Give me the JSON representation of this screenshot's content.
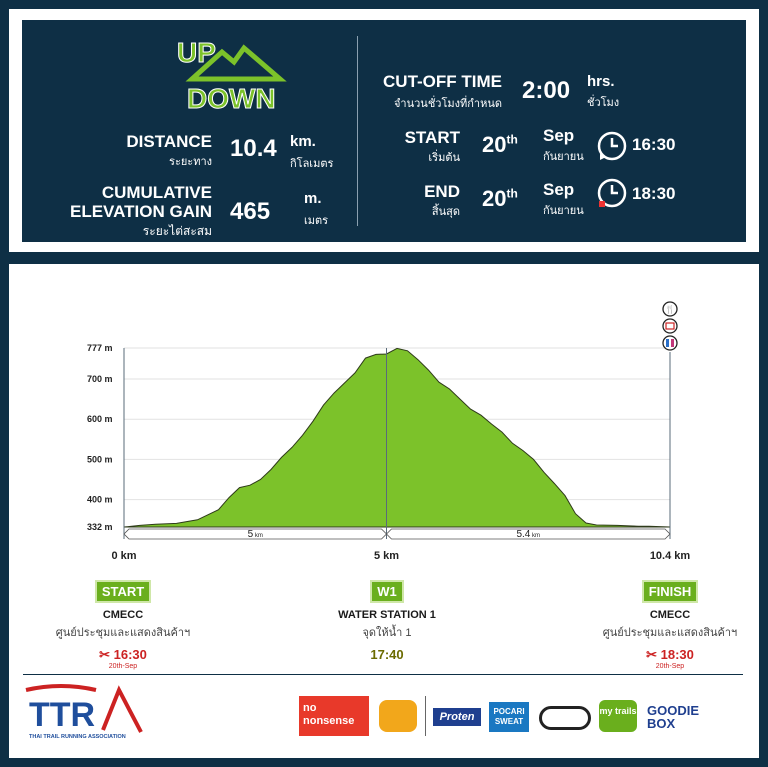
{
  "header": {
    "distance": {
      "label": "DISTANCE",
      "label_th": "ระยะทาง",
      "value": "10.4",
      "unit": "km.",
      "unit_th": "กิโลเมตร"
    },
    "elevation": {
      "label1": "CUMULATIVE",
      "label2": "ELEVATION GAIN",
      "label_th": "ระยะไต่สะสม",
      "value": "465",
      "unit": "m.",
      "unit_th": "เมตร"
    },
    "cutoff": {
      "label": "CUT-OFF TIME",
      "label_th": "จำนวนชั่วโมงที่กำหนด",
      "value": "2:00",
      "unit": "hrs.",
      "unit_th": "ชั่วโมง"
    },
    "start": {
      "label": "START",
      "label_th": "เริ่มต้น",
      "day": "20",
      "day_sup": "th",
      "month": "Sep",
      "month_th": "กันยายน",
      "time": "16:30"
    },
    "end": {
      "label": "END",
      "label_th": "สิ้นสุด",
      "day": "20",
      "day_sup": "th",
      "month": "Sep",
      "month_th": "กันยายน",
      "time": "18:30"
    }
  },
  "logo": {
    "line1": "UP",
    "line2": "DOWN"
  },
  "chart_data": {
    "type": "area",
    "xlabel": "",
    "ylabel": "",
    "y_ticks": [
      "777 m",
      "700 m",
      "600 m",
      "500 m",
      "400 m",
      "332 m"
    ],
    "y_tick_values": [
      777,
      700,
      600,
      500,
      400,
      332
    ],
    "ylim": [
      332,
      777
    ],
    "xlim": [
      0,
      10.4
    ],
    "x_ticks": [
      {
        "v": 0,
        "label": "0 km"
      },
      {
        "v": 5,
        "label": "5 km"
      },
      {
        "v": 10.4,
        "label": "10.4 km"
      }
    ],
    "segments": [
      {
        "from": 0,
        "to": 5,
        "label": "5",
        "unit": "km"
      },
      {
        "from": 5,
        "to": 10.4,
        "label": "5.4",
        "unit": "km"
      }
    ],
    "x": [
      0,
      0.3,
      0.6,
      1.0,
      1.4,
      1.8,
      2.0,
      2.2,
      2.4,
      2.6,
      2.8,
      3.0,
      3.2,
      3.4,
      3.6,
      3.8,
      4.0,
      4.2,
      4.4,
      4.6,
      4.8,
      5.0,
      5.2,
      5.4,
      5.6,
      5.8,
      6.0,
      6.2,
      6.4,
      6.6,
      6.8,
      7.0,
      7.2,
      7.4,
      7.6,
      7.8,
      8.0,
      8.2,
      8.4,
      8.6,
      8.8,
      9.0,
      9.4,
      9.8,
      10.0,
      10.4
    ],
    "values": [
      332,
      336,
      339,
      341,
      350,
      375,
      405,
      430,
      436,
      450,
      475,
      505,
      530,
      560,
      595,
      635,
      665,
      690,
      715,
      752,
      761,
      762,
      776,
      770,
      748,
      722,
      692,
      675,
      650,
      625,
      610,
      588,
      568,
      540,
      522,
      500,
      468,
      440,
      410,
      365,
      342,
      337,
      336,
      334,
      334,
      332
    ],
    "area_color": "#7cc22a",
    "line_color": "#2e3a1a"
  },
  "checkpoints": [
    {
      "tag": "START",
      "name": "CMECC",
      "name_th": "ศูนย์ประชุมและแสดงสินค้าฯ",
      "time": "16:30",
      "date": "20th-Sep"
    },
    {
      "tag": "W1",
      "name": "WATER STATION 1",
      "name_th": "จุดให้น้ำ 1",
      "time": "17:40"
    },
    {
      "tag": "FINISH",
      "name": "CMECC",
      "name_th": "ศูนย์ประชุมและแสดงสินค้าฯ",
      "time": "18:30",
      "date": "20th-Sep"
    }
  ],
  "footer": {
    "org": "THAI TRAIL RUNNING ASSOCIATION",
    "org_logo": "TTR",
    "sponsors": [
      "no nonsense",
      "Proten",
      "POCARI SWEAT",
      "my trails",
      "GOODIE BOX"
    ]
  }
}
